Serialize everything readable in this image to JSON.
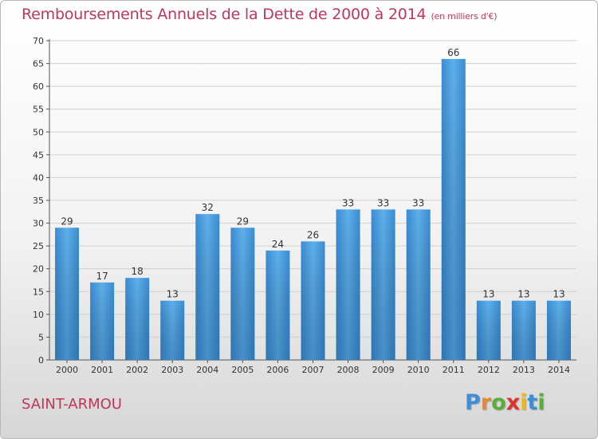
{
  "title": "Remboursements Annuels de la Dette de 2000 à 2014",
  "unit_note": "(en milliers d'€)",
  "commune": "SAINT-ARMOU",
  "brand": {
    "letters": [
      {
        "ch": "P",
        "color": "#3e8ed6"
      },
      {
        "ch": "r",
        "color": "#e98a2a"
      },
      {
        "ch": "o",
        "color": "#5cae3a"
      },
      {
        "ch": "x",
        "color": "#d8362c"
      },
      {
        "ch": "i",
        "color": "#e9b81f"
      },
      {
        "ch": "t",
        "color": "#3e8ed6"
      },
      {
        "ch": "i",
        "color": "#5cae3a"
      }
    ]
  },
  "chart_data": {
    "type": "bar",
    "categories": [
      "2000",
      "2001",
      "2002",
      "2003",
      "2004",
      "2005",
      "2006",
      "2007",
      "2008",
      "2009",
      "2010",
      "2011",
      "2012",
      "2013",
      "2014"
    ],
    "values": [
      29,
      17,
      18,
      13,
      32,
      29,
      24,
      26,
      33,
      33,
      33,
      66,
      13,
      13,
      13
    ],
    "title": "Remboursements Annuels de la Dette de 2000 à 2014",
    "ylim": [
      0,
      70
    ],
    "yticks": [
      0,
      5,
      10,
      15,
      20,
      25,
      30,
      35,
      40,
      45,
      50,
      55,
      60,
      65,
      70
    ],
    "grid": "horizontal",
    "bar_color": "#4a9ee0",
    "show_data_labels": true
  }
}
